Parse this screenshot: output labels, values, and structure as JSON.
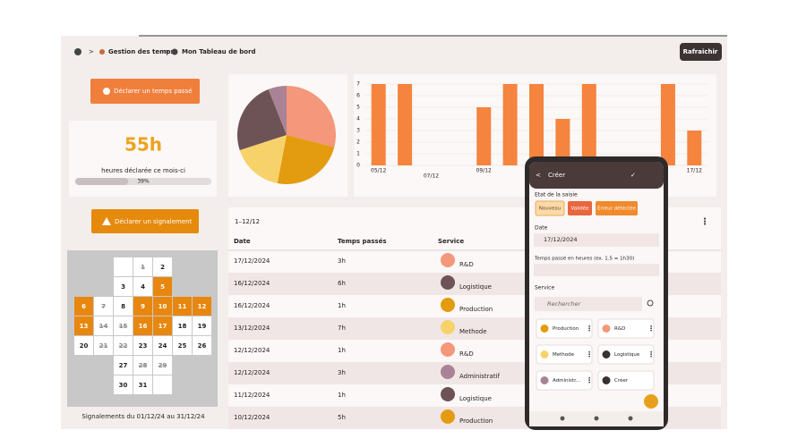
{
  "header": {
    "breadcrumb": [
      "Gestion des temps",
      "Mon Tableau de bord"
    ],
    "refresh": "Rafraichir"
  },
  "left": {
    "declare_time": "Déclarer un temps passé",
    "hours": "55h",
    "hours_caption": "heures déclarée ce mois-ci",
    "progress": {
      "value": 39,
      "label": "39%"
    },
    "declare_report": "Déclarer un signalement",
    "calendar_caption": "Signalements du 01/12/24 au 31/12/24"
  },
  "calendar": {
    "days": [
      {
        "label": "1",
        "state": "crossed"
      },
      {
        "label": "2",
        "state": "normal"
      },
      {
        "label": "3",
        "state": "normal"
      },
      {
        "label": "4",
        "state": "normal"
      },
      {
        "label": "5",
        "state": "highlight"
      },
      {
        "label": "6",
        "state": "highlight"
      },
      {
        "label": "7",
        "state": "crossed"
      },
      {
        "label": "8",
        "state": "normal"
      },
      {
        "label": "9",
        "state": "highlight"
      },
      {
        "label": "10",
        "state": "highlight"
      },
      {
        "label": "11",
        "state": "highlight"
      },
      {
        "label": "12",
        "state": "highlight"
      },
      {
        "label": "13",
        "state": "highlight"
      },
      {
        "label": "14",
        "state": "crossed"
      },
      {
        "label": "15",
        "state": "crossed"
      },
      {
        "label": "16",
        "state": "highlight"
      },
      {
        "label": "17",
        "state": "highlight"
      },
      {
        "label": "18",
        "state": "normal"
      },
      {
        "label": "19",
        "state": "normal"
      },
      {
        "label": "20",
        "state": "normal"
      },
      {
        "label": "21",
        "state": "crossed"
      },
      {
        "label": "22",
        "state": "crossed"
      },
      {
        "label": "23",
        "state": "normal"
      },
      {
        "label": "24",
        "state": "normal"
      },
      {
        "label": "25",
        "state": "normal"
      },
      {
        "label": "26",
        "state": "normal"
      },
      {
        "label": "27",
        "state": "normal"
      },
      {
        "label": "28",
        "state": "crossed"
      },
      {
        "label": "29",
        "state": "crossed"
      },
      {
        "label": "30",
        "state": "normal"
      },
      {
        "label": "31",
        "state": "normal"
      }
    ]
  },
  "chart_data": [
    {
      "type": "pie",
      "values": [
        29,
        24,
        17,
        24,
        6
      ],
      "colors": [
        "#f4977a",
        "#e39b10",
        "#f7d26a",
        "#6e5356",
        "#a98395"
      ]
    },
    {
      "type": "bar",
      "categories": [
        "05/12",
        null,
        "07/12",
        null,
        "09/12",
        null,
        null,
        null,
        null,
        null,
        null,
        null,
        "17/12"
      ],
      "values": [
        7,
        7,
        0,
        0,
        5,
        7,
        7,
        4,
        7,
        0,
        0,
        7,
        3
      ],
      "color": "#f5843f",
      "ylim": [
        0,
        7
      ],
      "yticks": [
        0,
        1,
        2,
        3,
        4,
        5,
        6,
        7
      ],
      "grid": true
    }
  ],
  "table": {
    "range": "1–12/12",
    "columns": [
      "Date",
      "Temps passés",
      "Service"
    ],
    "rows": [
      {
        "date": "17/12/2024",
        "time": "3h",
        "service": "R&D",
        "color": "#f4977a"
      },
      {
        "date": "16/12/2024",
        "time": "6h",
        "service": "Logistique",
        "color": "#6e5356"
      },
      {
        "date": "16/12/2024",
        "time": "1h",
        "service": "Production",
        "color": "#e39b10"
      },
      {
        "date": "13/12/2024",
        "time": "7h",
        "service": "Methode",
        "color": "#f7d26a"
      },
      {
        "date": "12/12/2024",
        "time": "1h",
        "service": "R&D",
        "color": "#f4977a"
      },
      {
        "date": "12/12/2024",
        "time": "3h",
        "service": "Administratif",
        "color": "#a98395"
      },
      {
        "date": "11/12/2024",
        "time": "1h",
        "service": "Logistique",
        "color": "#6e5356"
      },
      {
        "date": "10/12/2024",
        "time": "5h",
        "service": "Production",
        "color": "#e39b10"
      }
    ]
  },
  "phone": {
    "title": "Créer",
    "state_label": "Etat de la saisie",
    "states": [
      {
        "label": "Nouveau",
        "color": "#fbd9a8"
      },
      {
        "label": "Validée",
        "color": "#e8663d"
      },
      {
        "label": "Erreur détectée",
        "color": "#f08a2c"
      }
    ],
    "date_label": "Date",
    "date": "17/12/2024",
    "time_label": "Temps passé en heures (ex. 1.5 = 1h30)",
    "service_label": "Service",
    "search": "Rechercher",
    "services": [
      {
        "label": "Production",
        "color": "#e39b10"
      },
      {
        "label": "R&D",
        "color": "#f4977a"
      },
      {
        "label": "Methode",
        "color": "#f7d26a"
      },
      {
        "label": "Logistique",
        "color": "#3a3030"
      },
      {
        "label": "Administr...",
        "color": "#a98395"
      },
      {
        "label": "Créer",
        "color": "#3a3030"
      }
    ]
  }
}
